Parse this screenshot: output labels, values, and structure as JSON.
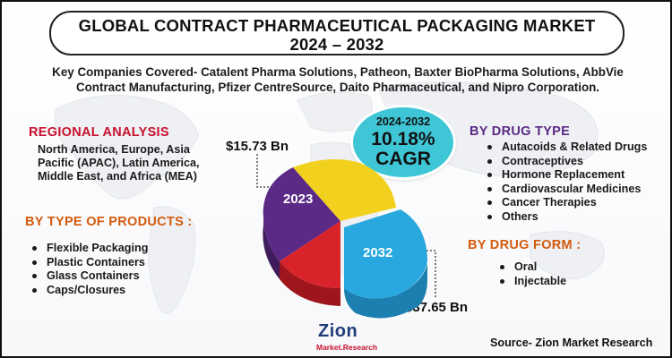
{
  "title": {
    "line1": "GLOBAL CONTRACT PHARMACEUTICAL PACKAGING MARKET",
    "line2": "2024 – 2032"
  },
  "key_companies": {
    "line1": "Key Companies Covered- Catalent Pharma Solutions, Patheon, Baxter BioPharma Solutions, AbbVie",
    "line2": "Contract Manufacturing, Pfizer CentreSource, Daito Pharmaceutical, and Nipro Corporation."
  },
  "regional_analysis": {
    "heading": "REGIONAL ANALYSIS",
    "text": "North America, Europe, Asia Pacific (APAC), Latin America, Middle East, and Africa (MEA)"
  },
  "products": {
    "heading": "BY TYPE OF PRODUCTS :",
    "items": [
      "Flexible Packaging",
      "Plastic Containers",
      "Glass Containers",
      "Caps/Closures"
    ]
  },
  "drug_type": {
    "heading": "BY DRUG TYPE",
    "items": [
      "Autacoids & Related Drugs",
      "Contraceptives",
      "Hormone Replacement",
      "Cardiovascular Medicines",
      "Cancer Therapies",
      "Others"
    ]
  },
  "drug_form": {
    "heading": "BY DRUG FORM :",
    "items": [
      "Oral",
      "Injectable"
    ]
  },
  "cagr": {
    "period": "2024-2032",
    "value": "10.18%",
    "label": "CAGR"
  },
  "market_values": {
    "year_start": "2023",
    "value_start": "$15.73 Bn",
    "year_end": "2032",
    "value_end": "$37.65 Bn"
  },
  "colors": {
    "title_red": "#c8102e",
    "orange": "#d35a0c",
    "purple": "#5b2a86",
    "pie_purple": "#5b2a86",
    "pie_yellow": "#f2d11e",
    "pie_red": "#d8232a",
    "pie_cyan": "#29a8e0",
    "badge_cyan": "#3ec6d6"
  },
  "logo": {
    "name": "Zion",
    "subtitle": "Market.Research"
  },
  "source": "Source- Zion Market Research"
}
